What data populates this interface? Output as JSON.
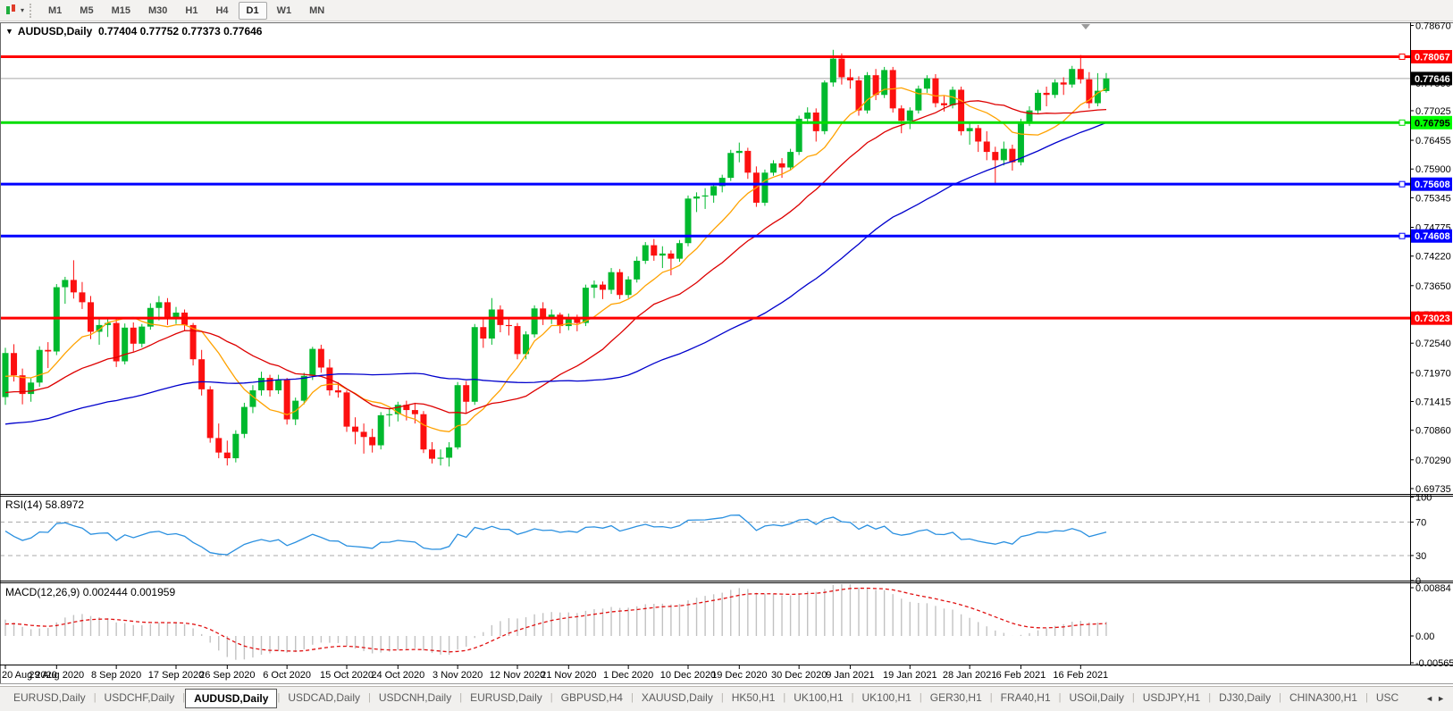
{
  "toolbar": {
    "timeframes": [
      "M1",
      "M5",
      "M15",
      "M30",
      "H1",
      "H4",
      "D1",
      "W1",
      "MN"
    ],
    "active": "D1"
  },
  "chart": {
    "title": {
      "collapse_icon": "▼",
      "symbol": "AUDUSD,Daily",
      "ohlc": "0.77404 0.77752 0.77373 0.77646"
    }
  },
  "panes": {
    "rsi_label": "RSI(14) 58.8972",
    "macd_label": "MACD(12,26,9) 0.002444 0.001959"
  },
  "tabs": {
    "items": [
      "EURUSD,Daily",
      "USDCHF,Daily",
      "AUDUSD,Daily",
      "USDCAD,Daily",
      "USDCNH,Daily",
      "EURUSD,Daily",
      "GBPUSD,H4",
      "XAUUSD,Daily",
      "HK50,H1",
      "UK100,H1",
      "UK100,H1",
      "GER30,H1",
      "FRA40,H1",
      "USOil,Daily",
      "USDJPY,H1",
      "DJ30,Daily",
      "CHINA300,H1",
      "USC"
    ],
    "active_index": 2,
    "scroll_left": "◄",
    "scroll_right": "►"
  },
  "chart_data": {
    "type": "candlestick",
    "symbol": "AUDUSD",
    "timeframe": "Daily",
    "colors": {
      "up": "#00b92e",
      "down": "#fc1010",
      "ma_fast": "#ffa200",
      "ma_mid": "#dd0000",
      "ma_slow": "#0000cc",
      "rsi_line": "#2a90e0",
      "rsi_dash": "#aaaaaa",
      "macd_bar": "#c2c2c2",
      "macd_signal": "#e01010",
      "current_line": "#a8a8a8",
      "current_box": "#000000"
    },
    "price_axis": {
      "ticks": [
        "0.78670",
        "0.78115",
        "0.77560",
        "0.77025",
        "0.76455",
        "0.75900",
        "0.75345",
        "0.74775",
        "0.74220",
        "0.73650",
        "0.73095",
        "0.72540",
        "0.71970",
        "0.71415",
        "0.70860",
        "0.70290",
        "0.69735"
      ],
      "current": {
        "value": 0.77646,
        "label": "0.77646"
      }
    },
    "levels": [
      {
        "price": 0.78067,
        "label": "0.78067",
        "color": "#ff0000",
        "box": "#ff0000",
        "text": "#ffffff",
        "width": 3,
        "handle": true
      },
      {
        "price": 0.76795,
        "label": "0.76795",
        "color": "#00dd00",
        "box": "#00ff00",
        "text": "#000000",
        "width": 3,
        "handle": true
      },
      {
        "price": 0.75608,
        "label": "0.75608",
        "color": "#0000ff",
        "box": "#0000ff",
        "text": "#ffffff",
        "width": 3,
        "handle": true
      },
      {
        "price": 0.74608,
        "label": "0.74608",
        "color": "#0000ff",
        "box": "#0000ff",
        "text": "#ffffff",
        "width": 3,
        "handle": true
      },
      {
        "price": 0.73023,
        "label": "0.73023",
        "color": "#ff0000",
        "box": "#ff0000",
        "text": "#ffffff",
        "width": 3,
        "handle": false
      }
    ],
    "x_labels": [
      "20 Aug 2020",
      "29 Aug 2020",
      "8 Sep 2020",
      "17 Sep 2020",
      "26 Sep 2020",
      "6 Oct 2020",
      "15 Oct 2020",
      "24 Oct 2020",
      "3 Nov 2020",
      "12 Nov 2020",
      "21 Nov 2020",
      "1 Dec 2020",
      "10 Dec 2020",
      "19 Dec 2020",
      "30 Dec 2020",
      "9 Jan 2021",
      "19 Jan 2021",
      "28 Jan 2021",
      "6 Feb 2021",
      "16 Feb 2021"
    ],
    "x_label_indices": [
      0,
      6,
      13,
      20,
      26,
      33,
      40,
      46,
      53,
      60,
      66,
      73,
      80,
      86,
      93,
      99,
      106,
      113,
      119,
      126
    ],
    "mas": [
      {
        "name": "ma-fast",
        "period": 10,
        "color": "#ffa200",
        "pre": 0.7185
      },
      {
        "name": "ma-mid",
        "period": 22,
        "color": "#dd0000",
        "pre": 0.7155
      },
      {
        "name": "ma-slow",
        "period": 50,
        "color": "#0000cc",
        "pre": 0.7095
      }
    ],
    "rsi": {
      "period": 14,
      "value": 58.8972,
      "levels": [
        70,
        30
      ],
      "axis": [
        "100",
        "70",
        "30",
        "0"
      ],
      "seed_gain": 0.0016,
      "seed_loss": 0.0011
    },
    "macd": {
      "value": 0.002444,
      "signal": 0.001959,
      "axis_max": "0.00884",
      "axis_zero": "0.00",
      "axis_min": "-0.005651",
      "start": 0.003,
      "signal_start": 0.0022
    },
    "candles": [
      [
        0.715,
        0.7245,
        0.7135,
        0.7235
      ],
      [
        0.7235,
        0.7252,
        0.718,
        0.7192
      ],
      [
        0.7192,
        0.7205,
        0.7136,
        0.7156
      ],
      [
        0.7156,
        0.7186,
        0.7141,
        0.7178
      ],
      [
        0.7178,
        0.7248,
        0.717,
        0.7241
      ],
      [
        0.7241,
        0.7256,
        0.7206,
        0.7238
      ],
      [
        0.7238,
        0.7368,
        0.7231,
        0.7362
      ],
      [
        0.7362,
        0.7382,
        0.733,
        0.7376
      ],
      [
        0.7376,
        0.7414,
        0.734,
        0.7352
      ],
      [
        0.7352,
        0.7372,
        0.732,
        0.7333
      ],
      [
        0.7333,
        0.7345,
        0.7262,
        0.7276
      ],
      [
        0.7276,
        0.7301,
        0.7251,
        0.7289
      ],
      [
        0.7289,
        0.7302,
        0.7266,
        0.7293
      ],
      [
        0.7293,
        0.73,
        0.7208,
        0.7219
      ],
      [
        0.7219,
        0.7292,
        0.7213,
        0.7284
      ],
      [
        0.7284,
        0.7294,
        0.7238,
        0.7253
      ],
      [
        0.7253,
        0.7291,
        0.7246,
        0.7286
      ],
      [
        0.7286,
        0.7331,
        0.728,
        0.7322
      ],
      [
        0.7322,
        0.7345,
        0.7298,
        0.7333
      ],
      [
        0.7333,
        0.7341,
        0.7289,
        0.7303
      ],
      [
        0.7303,
        0.7324,
        0.7291,
        0.7313
      ],
      [
        0.7313,
        0.7319,
        0.7277,
        0.7289
      ],
      [
        0.7289,
        0.7293,
        0.7211,
        0.7223
      ],
      [
        0.7223,
        0.7241,
        0.7153,
        0.7165
      ],
      [
        0.7165,
        0.7171,
        0.7062,
        0.7071
      ],
      [
        0.7071,
        0.7099,
        0.7032,
        0.7043
      ],
      [
        0.7043,
        0.7066,
        0.7018,
        0.7032
      ],
      [
        0.7032,
        0.7086,
        0.7024,
        0.7079
      ],
      [
        0.7079,
        0.7139,
        0.7071,
        0.7131
      ],
      [
        0.7131,
        0.7173,
        0.7119,
        0.7163
      ],
      [
        0.7163,
        0.7199,
        0.7153,
        0.7187
      ],
      [
        0.7187,
        0.7193,
        0.7151,
        0.7163
      ],
      [
        0.7163,
        0.7193,
        0.7156,
        0.7183
      ],
      [
        0.7183,
        0.7187,
        0.7097,
        0.7107
      ],
      [
        0.7107,
        0.7149,
        0.7096,
        0.7143
      ],
      [
        0.7143,
        0.7197,
        0.7136,
        0.7191
      ],
      [
        0.7191,
        0.7247,
        0.7183,
        0.7243
      ],
      [
        0.7243,
        0.7251,
        0.7197,
        0.7207
      ],
      [
        0.7207,
        0.7223,
        0.7153,
        0.7163
      ],
      [
        0.7163,
        0.7179,
        0.7149,
        0.7159
      ],
      [
        0.7159,
        0.7163,
        0.7083,
        0.7093
      ],
      [
        0.7093,
        0.7111,
        0.7059,
        0.7083
      ],
      [
        0.7083,
        0.7099,
        0.7041,
        0.7073
      ],
      [
        0.7073,
        0.7089,
        0.7043,
        0.7057
      ],
      [
        0.7057,
        0.7121,
        0.7049,
        0.7115
      ],
      [
        0.7115,
        0.7129,
        0.7093,
        0.7117
      ],
      [
        0.7117,
        0.7141,
        0.7103,
        0.7135
      ],
      [
        0.7135,
        0.7143,
        0.7105,
        0.7125
      ],
      [
        0.7125,
        0.7139,
        0.7099,
        0.7117
      ],
      [
        0.7117,
        0.7123,
        0.7042,
        0.7049
      ],
      [
        0.7049,
        0.7063,
        0.7022,
        0.7031
      ],
      [
        0.7031,
        0.7049,
        0.7018,
        0.7033
      ],
      [
        0.7033,
        0.7063,
        0.7016,
        0.7053
      ],
      [
        0.7053,
        0.7179,
        0.7049,
        0.7173
      ],
      [
        0.7173,
        0.7181,
        0.7119,
        0.7141
      ],
      [
        0.7141,
        0.7291,
        0.7135,
        0.7285
      ],
      [
        0.7285,
        0.7301,
        0.7245,
        0.7263
      ],
      [
        0.7263,
        0.7341,
        0.7251,
        0.7319
      ],
      [
        0.7319,
        0.7327,
        0.7275,
        0.7289
      ],
      [
        0.7289,
        0.7303,
        0.7269,
        0.7287
      ],
      [
        0.7287,
        0.7293,
        0.7223,
        0.7233
      ],
      [
        0.7233,
        0.7277,
        0.7223,
        0.7271
      ],
      [
        0.7271,
        0.7327,
        0.7265,
        0.7321
      ],
      [
        0.7321,
        0.7333,
        0.7289,
        0.7303
      ],
      [
        0.7303,
        0.7319,
        0.7291,
        0.7309
      ],
      [
        0.7309,
        0.7313,
        0.7273,
        0.7287
      ],
      [
        0.7287,
        0.7311,
        0.7279,
        0.7303
      ],
      [
        0.7303,
        0.7309,
        0.7277,
        0.7293
      ],
      [
        0.7293,
        0.7367,
        0.7287,
        0.7361
      ],
      [
        0.7361,
        0.7375,
        0.7341,
        0.7367
      ],
      [
        0.7367,
        0.7373,
        0.7339,
        0.7357
      ],
      [
        0.7357,
        0.7399,
        0.7349,
        0.7391
      ],
      [
        0.7391,
        0.7397,
        0.7339,
        0.7347
      ],
      [
        0.7347,
        0.7383,
        0.7341,
        0.7377
      ],
      [
        0.7377,
        0.7421,
        0.7371,
        0.7413
      ],
      [
        0.7413,
        0.7449,
        0.7407,
        0.7443
      ],
      [
        0.7443,
        0.7455,
        0.7413,
        0.7423
      ],
      [
        0.7423,
        0.7441,
        0.7399,
        0.7427
      ],
      [
        0.7427,
        0.7433,
        0.7385,
        0.7417
      ],
      [
        0.7417,
        0.7453,
        0.7411,
        0.7447
      ],
      [
        0.7447,
        0.7539,
        0.7441,
        0.7533
      ],
      [
        0.7533,
        0.7545,
        0.7507,
        0.7537
      ],
      [
        0.7537,
        0.7553,
        0.7513,
        0.7539
      ],
      [
        0.7539,
        0.7563,
        0.7525,
        0.7557
      ],
      [
        0.7557,
        0.7579,
        0.7545,
        0.7573
      ],
      [
        0.7573,
        0.7627,
        0.7567,
        0.7621
      ],
      [
        0.7621,
        0.7641,
        0.7603,
        0.7625
      ],
      [
        0.7625,
        0.7631,
        0.7571,
        0.7583
      ],
      [
        0.7583,
        0.7595,
        0.7517,
        0.7525
      ],
      [
        0.7525,
        0.7589,
        0.7519,
        0.7583
      ],
      [
        0.7583,
        0.7607,
        0.7577,
        0.7601
      ],
      [
        0.7601,
        0.7611,
        0.7573,
        0.7593
      ],
      [
        0.7593,
        0.7629,
        0.7587,
        0.7623
      ],
      [
        0.7623,
        0.7693,
        0.7617,
        0.7687
      ],
      [
        0.7687,
        0.7709,
        0.7677,
        0.7699
      ],
      [
        0.7699,
        0.7707,
        0.7643,
        0.7663
      ],
      [
        0.7663,
        0.7761,
        0.7657,
        0.7757
      ],
      [
        0.7757,
        0.782,
        0.7749,
        0.7803
      ],
      [
        0.7803,
        0.7813,
        0.7753,
        0.7767
      ],
      [
        0.7767,
        0.7783,
        0.7745,
        0.7761
      ],
      [
        0.7761,
        0.7769,
        0.7693,
        0.7703
      ],
      [
        0.7703,
        0.7777,
        0.7697,
        0.7771
      ],
      [
        0.7771,
        0.7783,
        0.7723,
        0.7733
      ],
      [
        0.7733,
        0.7787,
        0.7727,
        0.7781
      ],
      [
        0.7781,
        0.7787,
        0.7699,
        0.7707
      ],
      [
        0.7707,
        0.7713,
        0.7659,
        0.7683
      ],
      [
        0.7683,
        0.7709,
        0.7667,
        0.7703
      ],
      [
        0.7703,
        0.7751,
        0.7697,
        0.7745
      ],
      [
        0.7745,
        0.7771,
        0.7737,
        0.7765
      ],
      [
        0.7765,
        0.7773,
        0.7709,
        0.7717
      ],
      [
        0.7717,
        0.7731,
        0.7701,
        0.7713
      ],
      [
        0.7713,
        0.7749,
        0.7707,
        0.7743
      ],
      [
        0.7743,
        0.7749,
        0.7655,
        0.7663
      ],
      [
        0.7663,
        0.7681,
        0.7637,
        0.7669
      ],
      [
        0.7669,
        0.7675,
        0.7623,
        0.7643
      ],
      [
        0.7643,
        0.7663,
        0.7607,
        0.7623
      ],
      [
        0.7623,
        0.7633,
        0.7559,
        0.7607
      ],
      [
        0.7607,
        0.7643,
        0.7597,
        0.7629
      ],
      [
        0.7629,
        0.7637,
        0.7587,
        0.7603
      ],
      [
        0.7603,
        0.7687,
        0.7597,
        0.7681
      ],
      [
        0.7681,
        0.7711,
        0.7673,
        0.7703
      ],
      [
        0.7703,
        0.7743,
        0.7697,
        0.7737
      ],
      [
        0.7737,
        0.7749,
        0.7711,
        0.7733
      ],
      [
        0.7733,
        0.7763,
        0.7727,
        0.7757
      ],
      [
        0.7757,
        0.7767,
        0.7733,
        0.7753
      ],
      [
        0.7753,
        0.7789,
        0.7747,
        0.7783
      ],
      [
        0.7783,
        0.781,
        0.7755,
        0.7763
      ],
      [
        0.7763,
        0.7777,
        0.7707,
        0.7717
      ],
      [
        0.7717,
        0.7775,
        0.7711,
        0.7741
      ],
      [
        0.77404,
        0.77752,
        0.77373,
        0.77646
      ]
    ]
  }
}
